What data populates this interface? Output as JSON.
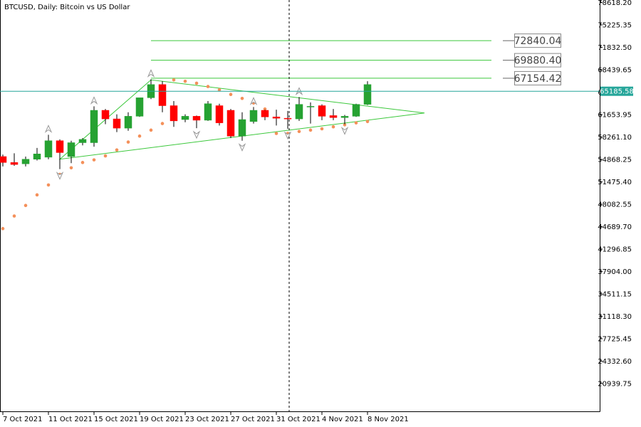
{
  "title": "BTCUSD, Daily:  Bitcoin vs US Dollar",
  "colors": {
    "bull": "#26a232",
    "bear": "#ff0000",
    "sar": "#f4905a",
    "trendline": "#3cc83c",
    "current_price_line": "#26a69a",
    "arrow": "#999999",
    "grid": "#000000"
  },
  "current_price": {
    "value": 65185.58,
    "label": "65185.58"
  },
  "levels": [
    {
      "value": 72840.04,
      "label": "72840.04"
    },
    {
      "value": 69880.4,
      "label": "69880.40"
    },
    {
      "value": 67154.42,
      "label": "67154.42"
    }
  ],
  "y_ticks": [
    "78618.20",
    "75225.35",
    "71832.50",
    "68439.65",
    "65046.80",
    "61653.95",
    "58261.10",
    "54868.25",
    "51475.40",
    "48082.55",
    "44689.70",
    "41296.85",
    "37904.00",
    "34511.15",
    "31118.30",
    "27725.45",
    "24332.60",
    "20939.75"
  ],
  "x_ticks": [
    "7 Oct 2021",
    "11 Oct 2021",
    "15 Oct 2021",
    "19 Oct 2021",
    "23 Oct 2021",
    "27 Oct 2021",
    "31 Oct 2021",
    "4 Nov 2021",
    "8 Nov 2021"
  ],
  "chart_data": {
    "type": "candlestick",
    "title": "BTCUSD, Daily:  Bitcoin vs US Dollar",
    "ylim": [
      17550,
      78618.2
    ],
    "x_labels": [
      "7 Oct 2021",
      "11 Oct 2021",
      "15 Oct 2021",
      "19 Oct 2021",
      "23 Oct 2021",
      "27 Oct 2021",
      "31 Oct 2021",
      "4 Nov 2021",
      "8 Nov 2021"
    ],
    "candles": [
      {
        "date": "2021-10-07",
        "open": 55300,
        "high": 55600,
        "low": 53800,
        "close": 54400
      },
      {
        "date": "2021-10-08",
        "open": 54400,
        "high": 55800,
        "low": 53900,
        "close": 54100
      },
      {
        "date": "2021-10-09",
        "open": 54200,
        "high": 55300,
        "low": 53800,
        "close": 54900
      },
      {
        "date": "2021-10-10",
        "open": 54900,
        "high": 56600,
        "low": 54700,
        "close": 55700
      },
      {
        "date": "2021-10-11",
        "open": 55200,
        "high": 58600,
        "low": 54900,
        "close": 57700
      },
      {
        "date": "2021-10-12",
        "open": 57700,
        "high": 57900,
        "low": 53400,
        "close": 55900
      },
      {
        "date": "2021-10-13",
        "open": 55300,
        "high": 57700,
        "low": 54300,
        "close": 57400
      },
      {
        "date": "2021-10-14",
        "open": 57400,
        "high": 58100,
        "low": 57000,
        "close": 57900
      },
      {
        "date": "2021-10-15",
        "open": 57400,
        "high": 62900,
        "low": 56800,
        "close": 62300
      },
      {
        "date": "2021-10-16",
        "open": 62300,
        "high": 62500,
        "low": 60200,
        "close": 61000
      },
      {
        "date": "2021-10-17",
        "open": 61000,
        "high": 61700,
        "low": 59000,
        "close": 59600
      },
      {
        "date": "2021-10-18",
        "open": 59600,
        "high": 62000,
        "low": 59200,
        "close": 61400
      },
      {
        "date": "2021-10-19",
        "open": 61400,
        "high": 64000,
        "low": 61300,
        "close": 64200
      },
      {
        "date": "2021-10-20",
        "open": 64200,
        "high": 67000,
        "low": 64000,
        "close": 66200
      },
      {
        "date": "2021-10-21",
        "open": 66200,
        "high": 66700,
        "low": 62000,
        "close": 63000
      },
      {
        "date": "2021-10-22",
        "open": 63000,
        "high": 63700,
        "low": 59800,
        "close": 60700
      },
      {
        "date": "2021-10-23",
        "open": 60900,
        "high": 61700,
        "low": 60500,
        "close": 61400
      },
      {
        "date": "2021-10-24",
        "open": 61400,
        "high": 61500,
        "low": 59600,
        "close": 60800
      },
      {
        "date": "2021-10-25",
        "open": 60800,
        "high": 63700,
        "low": 60700,
        "close": 63300
      },
      {
        "date": "2021-10-26",
        "open": 63000,
        "high": 63300,
        "low": 60000,
        "close": 60400
      },
      {
        "date": "2021-10-27",
        "open": 62300,
        "high": 62500,
        "low": 58100,
        "close": 58400
      },
      {
        "date": "2021-10-28",
        "open": 58400,
        "high": 62000,
        "low": 57700,
        "close": 60900
      },
      {
        "date": "2021-10-29",
        "open": 60600,
        "high": 62800,
        "low": 60300,
        "close": 62300
      },
      {
        "date": "2021-10-30",
        "open": 62300,
        "high": 62400,
        "low": 60800,
        "close": 61300
      },
      {
        "date": "2021-10-31",
        "open": 61300,
        "high": 62400,
        "low": 60000,
        "close": 61100
      },
      {
        "date": "2021-11-01",
        "open": 61100,
        "high": 62200,
        "low": 59500,
        "close": 61000
      },
      {
        "date": "2021-11-02",
        "open": 61000,
        "high": 64300,
        "low": 60700,
        "close": 63200
      },
      {
        "date": "2021-11-03",
        "open": 62900,
        "high": 63500,
        "low": 60300,
        "close": 62900
      },
      {
        "date": "2021-11-04",
        "open": 63000,
        "high": 63200,
        "low": 60800,
        "close": 61400
      },
      {
        "date": "2021-11-05",
        "open": 61500,
        "high": 62500,
        "low": 60800,
        "close": 61200
      },
      {
        "date": "2021-11-06",
        "open": 61200,
        "high": 61600,
        "low": 60200,
        "close": 61400
      },
      {
        "date": "2021-11-07",
        "open": 61400,
        "high": 63300,
        "low": 61300,
        "close": 63200
      },
      {
        "date": "2021-11-08",
        "open": 63200,
        "high": 66700,
        "low": 63100,
        "close": 66200
      }
    ],
    "parabolic_sar": [
      44400,
      46300,
      47900,
      49500,
      51000,
      52600,
      53600,
      54400,
      54800,
      55400,
      56300,
      57500,
      58400,
      59300,
      60300,
      66900,
      66700,
      66400,
      65900,
      65400,
      64700,
      64100,
      63400,
      62500,
      58800,
      58800,
      59100,
      59300,
      59500,
      59800,
      60100,
      60400,
      60600
    ],
    "fractals_up": [
      {
        "date": "2021-10-11",
        "value": 58600
      },
      {
        "date": "2021-10-15",
        "value": 62900
      },
      {
        "date": "2021-10-20",
        "value": 67000
      },
      {
        "date": "2021-10-29",
        "value": 62800
      },
      {
        "date": "2021-11-02",
        "value": 64300
      }
    ],
    "fractals_down": [
      {
        "date": "2021-10-12",
        "value": 53400
      },
      {
        "date": "2021-10-24",
        "value": 59600
      },
      {
        "date": "2021-10-28",
        "value": 57700
      },
      {
        "date": "2021-11-01",
        "value": 59500
      },
      {
        "date": "2021-11-06",
        "value": 60200
      }
    ],
    "triangle": [
      {
        "date": "2021-10-12",
        "value": 54900
      },
      {
        "date": "2021-10-20",
        "value": 66900
      },
      {
        "date": "2021-11-13",
        "value": 61900
      }
    ],
    "horizontal_levels": [
      72840.04,
      69880.4,
      67154.42
    ],
    "current_price": 65185.58
  }
}
